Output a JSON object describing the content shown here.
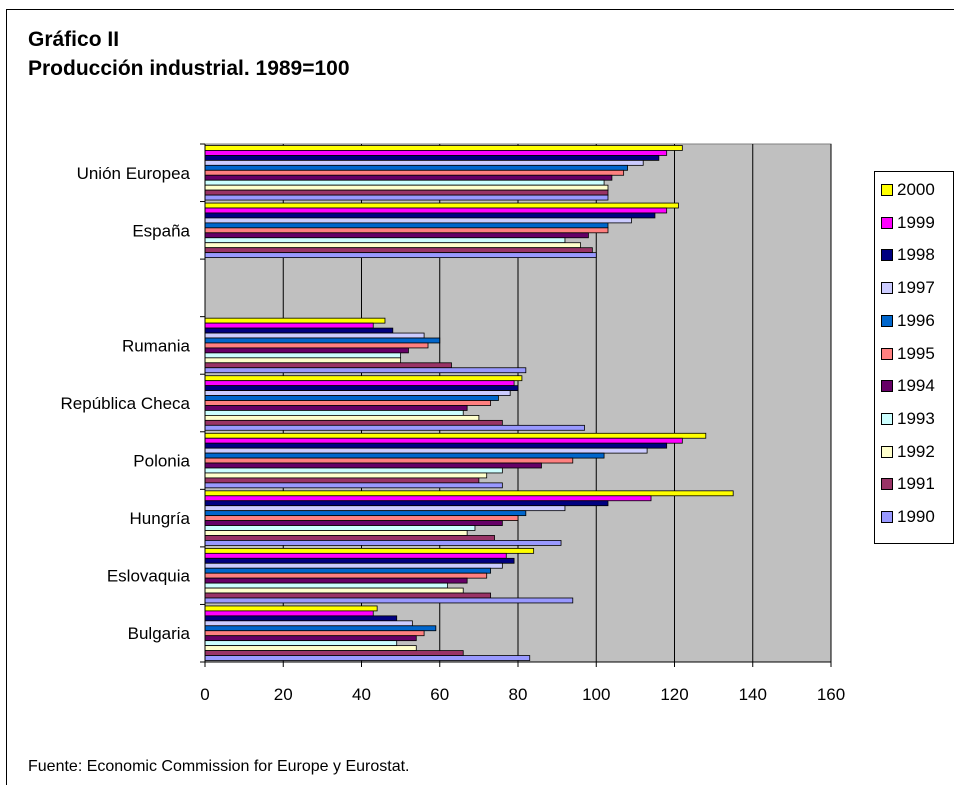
{
  "title": {
    "line1": "Gráfico II",
    "line2": "Producción industrial. 1989=100"
  },
  "source": "Fuente: Economic Commission for Europe y Eurostat.",
  "chart_data": {
    "type": "bar",
    "orientation": "horizontal",
    "xlim": [
      0,
      160
    ],
    "x_ticks": [
      "0",
      "20",
      "40",
      "60",
      "80",
      "100",
      "120",
      "140",
      "160"
    ],
    "grid": true,
    "plot_background": "#c0c0c0",
    "legend_position": "right",
    "categories": [
      "Unión Europea",
      "España",
      "",
      "Rumania",
      "República Checa",
      "Polonia",
      "Hungría",
      "Eslovaquia",
      "Bulgaria"
    ],
    "series": [
      {
        "name": "2000",
        "color": "#ffff00",
        "values": [
          122,
          121,
          null,
          46,
          81,
          128,
          135,
          84,
          44
        ]
      },
      {
        "name": "1999",
        "color": "#ff00ff",
        "values": [
          118,
          118,
          null,
          43,
          79,
          122,
          114,
          77,
          43
        ]
      },
      {
        "name": "1998",
        "color": "#000080",
        "values": [
          116,
          115,
          null,
          48,
          80,
          118,
          103,
          79,
          49
        ]
      },
      {
        "name": "1997",
        "color": "#ccccff",
        "values": [
          112,
          109,
          null,
          56,
          78,
          113,
          92,
          76,
          53
        ]
      },
      {
        "name": "1996",
        "color": "#0066cc",
        "values": [
          108,
          103,
          null,
          60,
          75,
          102,
          82,
          73,
          59
        ]
      },
      {
        "name": "1995",
        "color": "#ff8080",
        "values": [
          107,
          103,
          null,
          57,
          73,
          94,
          80,
          72,
          56
        ]
      },
      {
        "name": "1994",
        "color": "#660066",
        "values": [
          104,
          98,
          null,
          52,
          67,
          86,
          76,
          67,
          54
        ]
      },
      {
        "name": "1993",
        "color": "#ccffff",
        "values": [
          102,
          92,
          null,
          50,
          66,
          76,
          69,
          62,
          49
        ]
      },
      {
        "name": "1992",
        "color": "#ffffcc",
        "values": [
          103,
          96,
          null,
          50,
          70,
          72,
          67,
          66,
          54
        ]
      },
      {
        "name": "1991",
        "color": "#993366",
        "values": [
          103,
          99,
          null,
          63,
          76,
          70,
          74,
          73,
          66
        ]
      },
      {
        "name": "1990",
        "color": "#9999ff",
        "values": [
          103,
          100,
          null,
          82,
          97,
          76,
          91,
          94,
          83
        ]
      }
    ]
  }
}
